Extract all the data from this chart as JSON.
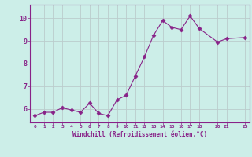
{
  "x": [
    0,
    1,
    2,
    3,
    4,
    5,
    6,
    7,
    8,
    9,
    10,
    11,
    12,
    13,
    14,
    15,
    16,
    17,
    18,
    20,
    21,
    23
  ],
  "y": [
    5.7,
    5.85,
    5.85,
    6.05,
    5.95,
    5.85,
    6.25,
    5.8,
    5.7,
    6.4,
    6.6,
    7.45,
    8.3,
    9.25,
    9.9,
    9.6,
    9.5,
    10.1,
    9.55,
    8.95,
    9.1,
    9.15
  ],
  "xticks": [
    0,
    1,
    2,
    3,
    4,
    5,
    6,
    7,
    8,
    9,
    10,
    11,
    12,
    13,
    14,
    15,
    16,
    17,
    18,
    20,
    21,
    23
  ],
  "yticks": [
    6,
    7,
    8,
    9,
    10
  ],
  "ylim": [
    5.4,
    10.6
  ],
  "xlim": [
    -0.5,
    23.5
  ],
  "xlabel": "Windchill (Refroidissement éolien,°C)",
  "line_color": "#882288",
  "marker": "D",
  "marker_size": 2.5,
  "bg_color": "#cceee8",
  "grid_color": "#bbcccc",
  "tick_color": "#882288",
  "label_color": "#882288",
  "figsize": [
    3.2,
    2.0
  ],
  "dpi": 100
}
